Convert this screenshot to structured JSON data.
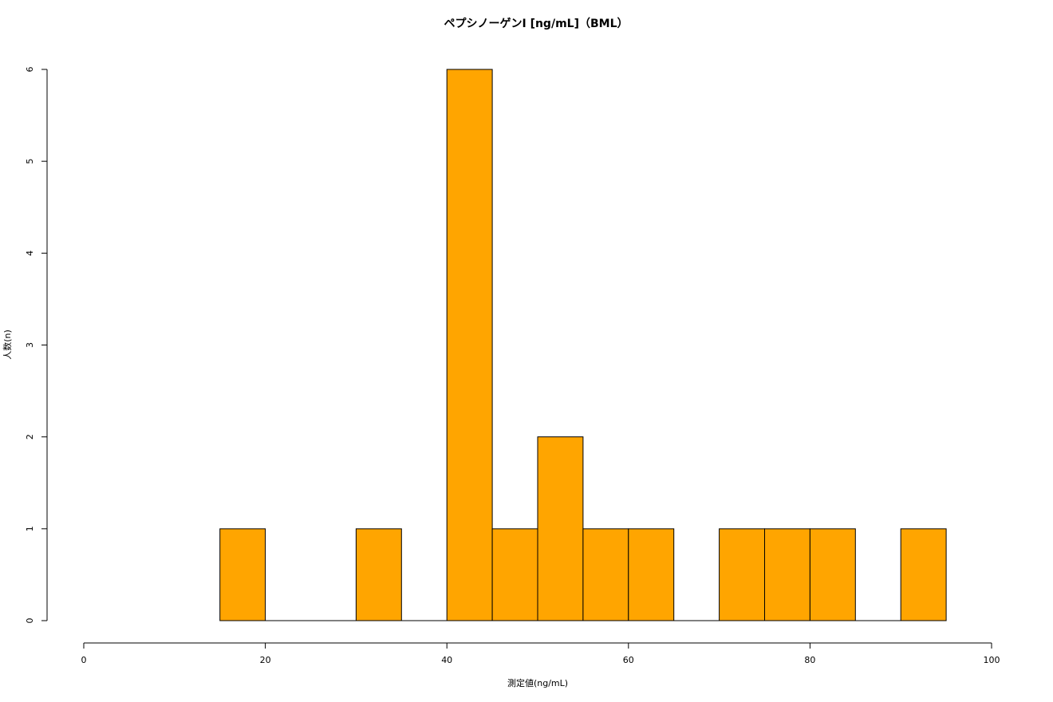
{
  "chart_data": {
    "type": "histogram",
    "title": "ペプシノーゲンⅠ [ng/mL]（BML）",
    "x_label": "測定値(ng/mL)",
    "y_label": "人数(n)",
    "bins": [
      15,
      20,
      25,
      30,
      35,
      40,
      45,
      50,
      55,
      60,
      65,
      70,
      75,
      80,
      85,
      90,
      95
    ],
    "counts": [
      1,
      0,
      0,
      1,
      0,
      6,
      1,
      2,
      1,
      1,
      0,
      1,
      1,
      1,
      0,
      1
    ],
    "color": "#ffa500",
    "xlim": [
      0,
      100
    ],
    "xticks": [
      0,
      20,
      40,
      60,
      80,
      100
    ],
    "ylim": [
      0,
      6
    ],
    "yticks": [
      0,
      1,
      2,
      3,
      4,
      5,
      6
    ]
  }
}
